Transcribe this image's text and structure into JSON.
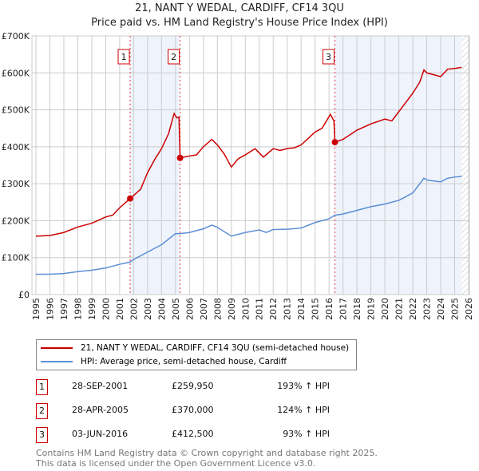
{
  "chart_data": {
    "type": "line",
    "title": "21, NANT Y WEDAL, CARDIFF, CF14 3QU",
    "subtitle": "Price paid vs. HM Land Registry's House Price Index (HPI)",
    "xlim": [
      1995,
      2026
    ],
    "ylim": [
      0,
      700000
    ],
    "x_ticks": [
      "1995",
      "1996",
      "1997",
      "1998",
      "1999",
      "2000",
      "2001",
      "2002",
      "2003",
      "2004",
      "2005",
      "2006",
      "2007",
      "2008",
      "2009",
      "2010",
      "2011",
      "2012",
      "2013",
      "2014",
      "2015",
      "2016",
      "2017",
      "2018",
      "2019",
      "2020",
      "2021",
      "2022",
      "2023",
      "2024",
      "2025",
      "2026"
    ],
    "y_ticks": [
      {
        "v": 0,
        "label": "£0"
      },
      {
        "v": 100000,
        "label": "£100K"
      },
      {
        "v": 200000,
        "label": "£200K"
      },
      {
        "v": 300000,
        "label": "£300K"
      },
      {
        "v": 400000,
        "label": "£400K"
      },
      {
        "v": 500000,
        "label": "£500K"
      },
      {
        "v": 600000,
        "label": "£600K"
      },
      {
        "v": 700000,
        "label": "£700K"
      }
    ],
    "grid": true,
    "series": [
      {
        "name": "21, NANT Y WEDAL, CARDIFF, CF14 3QU (semi-detached house)",
        "color": "#cc0000",
        "x": [
          1995,
          1996,
          1997,
          1998,
          1999,
          2000,
          2000.5,
          2001,
          2001.75,
          2002,
          2002.5,
          2003,
          2003.5,
          2004,
          2004.5,
          2004.9,
          2005.1,
          2005.25,
          2005.33,
          2006,
          2006.5,
          2007,
          2007.6,
          2008,
          2008.5,
          2009,
          2009.5,
          2010,
          2010.7,
          2011.3,
          2012,
          2012.5,
          2013,
          2013.5,
          2014,
          2015,
          2015.5,
          2016.1,
          2016.35,
          2016.42,
          2017,
          2018,
          2019,
          2020,
          2020.5,
          2021,
          2022,
          2022.5,
          2022.8,
          2023,
          2023.5,
          2024,
          2024.5,
          2025,
          2025.5
        ],
        "y": [
          158000,
          160000,
          168000,
          183000,
          193000,
          210000,
          215000,
          235000,
          260000,
          268000,
          285000,
          330000,
          365000,
          395000,
          435000,
          490000,
          478000,
          480000,
          370000,
          375000,
          378000,
          400000,
          420000,
          405000,
          380000,
          345000,
          368000,
          378000,
          395000,
          372000,
          395000,
          390000,
          395000,
          397000,
          405000,
          440000,
          450000,
          488000,
          470000,
          412500,
          420000,
          445000,
          462000,
          475000,
          470000,
          495000,
          545000,
          575000,
          608000,
          600000,
          595000,
          590000,
          610000,
          612000,
          615000
        ]
      },
      {
        "name": "HPI: Average price, semi-detached house, Cardiff",
        "color": "#5b8fd6",
        "x": [
          1995,
          1996,
          1997,
          1998,
          1999,
          2000,
          2001,
          2001.75,
          2002,
          2003,
          2004,
          2005,
          2005.33,
          2006,
          2007,
          2007.6,
          2008,
          2009,
          2010,
          2011,
          2011.5,
          2012,
          2013,
          2014,
          2015,
          2016,
          2016.42,
          2017,
          2018,
          2019,
          2020,
          2021,
          2022,
          2022.8,
          2023,
          2024,
          2024.5,
          2025,
          2025.5
        ],
        "y": [
          55000,
          55000,
          57000,
          62000,
          66000,
          72000,
          82000,
          88000,
          95000,
          115000,
          135000,
          165000,
          165000,
          168000,
          178000,
          188000,
          182000,
          158000,
          168000,
          175000,
          168000,
          176000,
          177000,
          180000,
          195000,
          205000,
          215000,
          218000,
          228000,
          238000,
          245000,
          255000,
          275000,
          315000,
          310000,
          305000,
          315000,
          318000,
          320000
        ]
      }
    ],
    "sales": [
      {
        "n": "1",
        "x": 2001.75,
        "y": 259950,
        "date": "28-SEP-2001",
        "price": "£259,950",
        "hpi": "193% ↑ HPI"
      },
      {
        "n": "2",
        "x": 2005.33,
        "y": 370000,
        "date": "28-APR-2005",
        "price": "£370,000",
        "hpi": "124% ↑ HPI"
      },
      {
        "n": "3",
        "x": 2016.42,
        "y": 412500,
        "date": "03-JUN-2016",
        "price": "£412,500",
        "hpi": "93% ↑ HPI"
      }
    ],
    "shaded_ranges": [
      [
        2001.75,
        2005.33
      ],
      [
        2016.42,
        2025.5
      ]
    ],
    "hatch_from": 2025.5
  },
  "legend": {
    "red": "21, NANT Y WEDAL, CARDIFF, CF14 3QU (semi-detached house)",
    "blue": "HPI: Average price, semi-detached house, Cardiff"
  },
  "footer": {
    "line1": "Contains HM Land Registry data © Crown copyright and database right 2025.",
    "line2": "This data is licensed under the Open Government Licence v3.0."
  }
}
